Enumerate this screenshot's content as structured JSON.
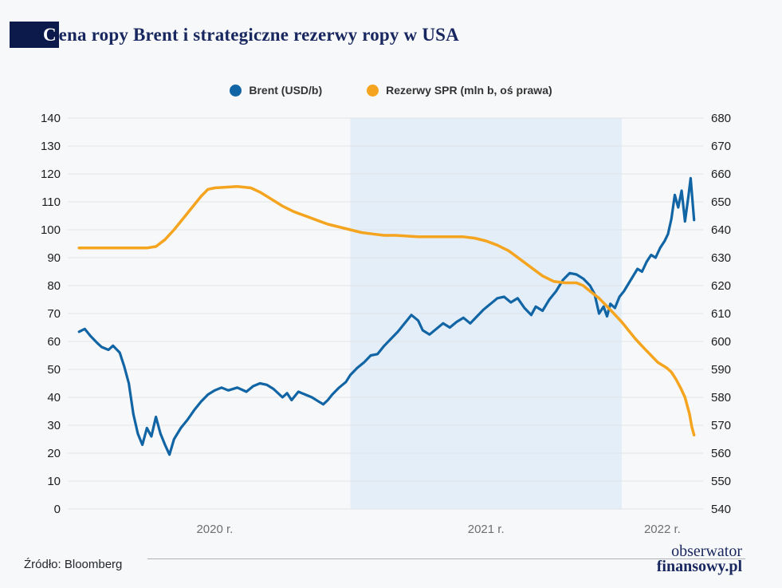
{
  "title": {
    "drop_cap": "C",
    "rest": "ena ropy Brent i strategiczne rezerwy ropy w USA",
    "full": "Cena ropy Brent i strategiczne rezerwy ropy w USA"
  },
  "footer": {
    "source": "Źródło: Bloomberg",
    "logo_line1": "obserwator",
    "logo_line2": "finansowy.pl"
  },
  "chart_data": {
    "type": "line",
    "title": "Cena ropy Brent i strategiczne rezerwy ropy w USA",
    "x_unit": "months since Jan 2020",
    "x_domain": [
      -0.5,
      27.6
    ],
    "x_axis_labels": [
      {
        "label": "2020 r.",
        "month": 6.0
      },
      {
        "label": "2021 r.",
        "month": 18.0
      },
      {
        "label": "2022 r.",
        "month": 25.8
      }
    ],
    "left_axis": {
      "min": 0,
      "max": 140,
      "step": 10,
      "title": "Brent (USD/b)"
    },
    "right_axis": {
      "min": 540,
      "max": 680,
      "step": 10,
      "title": "Rezerwy SPR (mln b)"
    },
    "highlight_band": {
      "from_month": 12,
      "to_month": 24,
      "meaning": "rok 2021"
    },
    "colors": {
      "band": "#E3EEF9",
      "grid": "#E2E3E7"
    },
    "legend_position": "top-center",
    "series": [
      {
        "name": "Brent (USD/b)",
        "axis": "left",
        "color": "#1265A5",
        "points": [
          [
            0,
            63.5
          ],
          [
            0.25,
            64.5
          ],
          [
            0.5,
            62
          ],
          [
            0.8,
            59.5
          ],
          [
            1.0,
            58
          ],
          [
            1.3,
            57
          ],
          [
            1.5,
            58.5
          ],
          [
            1.8,
            56
          ],
          [
            2.0,
            51
          ],
          [
            2.2,
            45
          ],
          [
            2.4,
            34
          ],
          [
            2.6,
            27
          ],
          [
            2.8,
            23
          ],
          [
            3.0,
            29
          ],
          [
            3.2,
            26
          ],
          [
            3.4,
            33
          ],
          [
            3.6,
            27
          ],
          [
            3.8,
            23
          ],
          [
            4.0,
            19.5
          ],
          [
            4.2,
            25
          ],
          [
            4.5,
            29
          ],
          [
            4.8,
            32
          ],
          [
            5.1,
            35.5
          ],
          [
            5.4,
            38.5
          ],
          [
            5.7,
            41
          ],
          [
            6.0,
            42.5
          ],
          [
            6.3,
            43.5
          ],
          [
            6.6,
            42.5
          ],
          [
            7.0,
            43.5
          ],
          [
            7.4,
            42
          ],
          [
            7.7,
            44
          ],
          [
            8.0,
            45
          ],
          [
            8.3,
            44.5
          ],
          [
            8.6,
            43
          ],
          [
            9.0,
            40
          ],
          [
            9.2,
            41.5
          ],
          [
            9.4,
            39
          ],
          [
            9.7,
            42
          ],
          [
            10.0,
            41
          ],
          [
            10.3,
            40
          ],
          [
            10.6,
            38.5
          ],
          [
            10.8,
            37.5
          ],
          [
            11.0,
            39
          ],
          [
            11.2,
            41
          ],
          [
            11.5,
            43.5
          ],
          [
            11.8,
            45.5
          ],
          [
            12.0,
            48
          ],
          [
            12.3,
            50.5
          ],
          [
            12.6,
            52.5
          ],
          [
            12.9,
            55
          ],
          [
            13.2,
            55.5
          ],
          [
            13.5,
            58.5
          ],
          [
            13.8,
            61
          ],
          [
            14.1,
            63.5
          ],
          [
            14.4,
            66.5
          ],
          [
            14.7,
            69.5
          ],
          [
            15.0,
            67.5
          ],
          [
            15.2,
            64
          ],
          [
            15.5,
            62.5
          ],
          [
            15.8,
            64.5
          ],
          [
            16.1,
            66.5
          ],
          [
            16.4,
            65
          ],
          [
            16.7,
            67
          ],
          [
            17.0,
            68.5
          ],
          [
            17.3,
            66.5
          ],
          [
            17.6,
            69
          ],
          [
            17.9,
            71.5
          ],
          [
            18.2,
            73.5
          ],
          [
            18.5,
            75.5
          ],
          [
            18.8,
            76
          ],
          [
            19.1,
            74
          ],
          [
            19.4,
            75.5
          ],
          [
            19.7,
            72
          ],
          [
            20.0,
            69.5
          ],
          [
            20.2,
            72.5
          ],
          [
            20.5,
            71
          ],
          [
            20.8,
            75
          ],
          [
            21.1,
            78
          ],
          [
            21.4,
            82
          ],
          [
            21.7,
            84.5
          ],
          [
            22.0,
            84
          ],
          [
            22.3,
            82.5
          ],
          [
            22.6,
            80
          ],
          [
            22.8,
            77
          ],
          [
            23.0,
            70
          ],
          [
            23.2,
            72.5
          ],
          [
            23.35,
            69
          ],
          [
            23.5,
            73.5
          ],
          [
            23.7,
            72
          ],
          [
            23.9,
            76
          ],
          [
            24.1,
            78
          ],
          [
            24.4,
            82
          ],
          [
            24.7,
            86
          ],
          [
            24.9,
            85
          ],
          [
            25.1,
            88.5
          ],
          [
            25.3,
            91
          ],
          [
            25.5,
            90
          ],
          [
            25.7,
            93.5
          ],
          [
            25.9,
            96
          ],
          [
            26.05,
            98.5
          ],
          [
            26.2,
            104
          ],
          [
            26.35,
            112.5
          ],
          [
            26.5,
            108
          ],
          [
            26.65,
            114
          ],
          [
            26.8,
            103
          ],
          [
            26.95,
            112
          ],
          [
            27.05,
            118.5
          ],
          [
            27.2,
            103.5
          ]
        ]
      },
      {
        "name": "Rezerwy SPR (mln b, oś prawa)",
        "axis": "right",
        "color": "#F5A41F",
        "points": [
          [
            0,
            633.5
          ],
          [
            1,
            633.5
          ],
          [
            2,
            633.5
          ],
          [
            3,
            633.5
          ],
          [
            3.4,
            634
          ],
          [
            3.8,
            636.5
          ],
          [
            4.2,
            640
          ],
          [
            4.6,
            644
          ],
          [
            5.0,
            648
          ],
          [
            5.4,
            652
          ],
          [
            5.7,
            654.5
          ],
          [
            6.0,
            655
          ],
          [
            7.0,
            655.5
          ],
          [
            7.6,
            655
          ],
          [
            8.0,
            653.5
          ],
          [
            8.5,
            651
          ],
          [
            9.0,
            648.5
          ],
          [
            9.5,
            646.5
          ],
          [
            10.0,
            645
          ],
          [
            10.5,
            643.5
          ],
          [
            11.0,
            642
          ],
          [
            11.5,
            641
          ],
          [
            12.0,
            640
          ],
          [
            12.5,
            639
          ],
          [
            13.0,
            638.5
          ],
          [
            13.5,
            638
          ],
          [
            14.0,
            638
          ],
          [
            15.0,
            637.5
          ],
          [
            16.0,
            637.5
          ],
          [
            17.0,
            637.5
          ],
          [
            17.5,
            637
          ],
          [
            18.0,
            636
          ],
          [
            18.5,
            634.5
          ],
          [
            19.0,
            632.5
          ],
          [
            19.5,
            629.5
          ],
          [
            20.0,
            626.5
          ],
          [
            20.5,
            623.5
          ],
          [
            21.0,
            621.5
          ],
          [
            21.5,
            621
          ],
          [
            22.0,
            621
          ],
          [
            22.3,
            620
          ],
          [
            22.6,
            618
          ],
          [
            23.0,
            615.5
          ],
          [
            23.3,
            613
          ],
          [
            23.6,
            610.5
          ],
          [
            24.0,
            607
          ],
          [
            24.3,
            604
          ],
          [
            24.6,
            601
          ],
          [
            25.0,
            597.5
          ],
          [
            25.3,
            595
          ],
          [
            25.6,
            592.5
          ],
          [
            26.0,
            590.5
          ],
          [
            26.2,
            589
          ],
          [
            26.4,
            586.5
          ],
          [
            26.6,
            583.5
          ],
          [
            26.8,
            580
          ],
          [
            27.0,
            574
          ],
          [
            27.1,
            569.5
          ],
          [
            27.2,
            566.5
          ]
        ]
      }
    ]
  }
}
